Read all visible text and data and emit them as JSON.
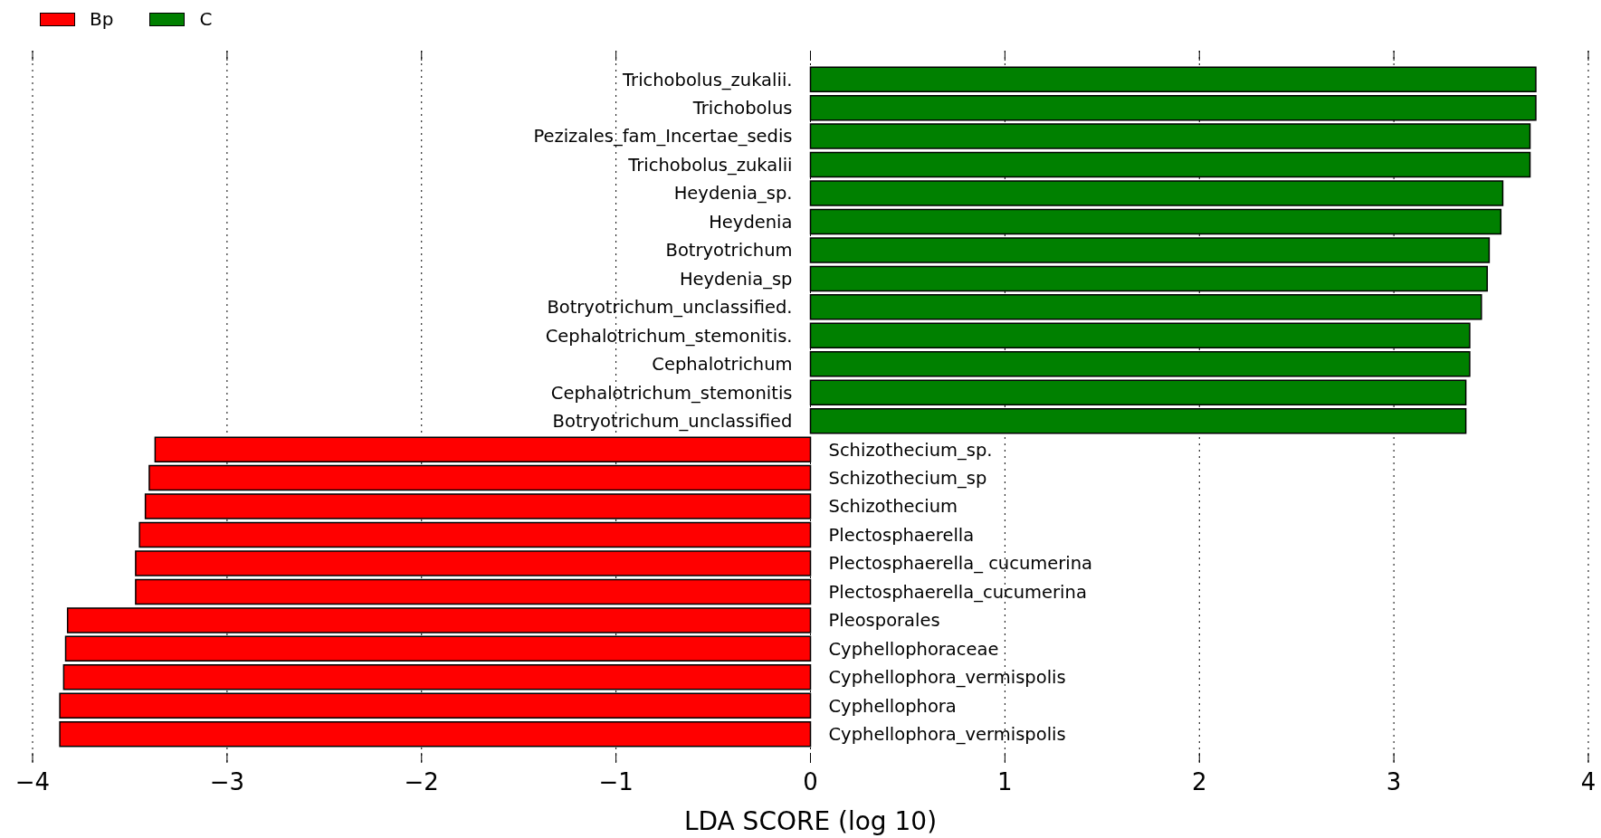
{
  "chart_data": {
    "type": "bar",
    "orientation": "horizontal",
    "categories": [
      "Trichobolus_zukalii.",
      "Trichobolus",
      "Pezizales_fam_Incertae_sedis",
      "Trichobolus_zukalii",
      "Heydenia_sp.",
      "Heydenia",
      "Botryotrichum",
      "Heydenia_sp",
      "Botryotrichum_unclassified.",
      "Cephalotrichum_stemonitis.",
      "Cephalotrichum",
      "Cephalotrichum_stemonitis",
      "Botryotrichum_unclassified",
      "Schizothecium_sp.",
      "Schizothecium_sp",
      "Schizothecium",
      "Plectosphaerella",
      "Plectosphaerella_ cucumerina",
      "Plectosphaerella_cucumerina",
      "Pleosporales",
      "Cyphellophoraceae",
      "Cyphellophora_vermispolis",
      "Cyphellophora",
      "Cyphellophora_vermispolis"
    ],
    "series": [
      {
        "name": "Bp",
        "color": "#ff0000",
        "values": [
          null,
          null,
          null,
          null,
          null,
          null,
          null,
          null,
          null,
          null,
          null,
          null,
          null,
          -3.37,
          -3.4,
          -3.42,
          -3.45,
          -3.47,
          -3.47,
          -3.82,
          -3.83,
          -3.84,
          -3.86,
          -3.86
        ]
      },
      {
        "name": "C",
        "color": "#008000",
        "values": [
          3.73,
          3.73,
          3.7,
          3.7,
          3.56,
          3.55,
          3.49,
          3.48,
          3.45,
          3.39,
          3.39,
          3.37,
          3.37,
          null,
          null,
          null,
          null,
          null,
          null,
          null,
          null,
          null,
          null,
          null
        ]
      }
    ],
    "xlim": [
      -4,
      4
    ],
    "xticks": [
      {
        "value": -4,
        "label": "−4"
      },
      {
        "value": -3,
        "label": "−3"
      },
      {
        "value": -2,
        "label": "−2"
      },
      {
        "value": -1,
        "label": "−1"
      },
      0,
      1,
      2,
      3,
      4
    ],
    "xlabel": "LDA SCORE (log 10)",
    "grid": "x",
    "legend": "top left"
  }
}
